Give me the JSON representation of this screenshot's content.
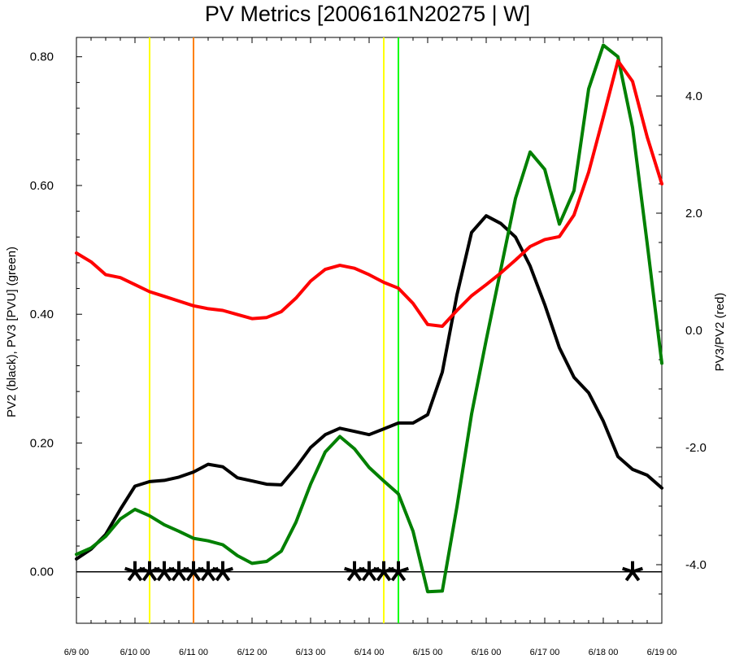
{
  "chart_data": {
    "type": "line",
    "title": "PV Metrics [2006161N20275 | W]",
    "left_ylabel": "PV2 (black), PV3 [PVU] (green)",
    "right_ylabel": "PV3/PV2 (red)",
    "x_tick_labels": [
      "6/9 00",
      "6/10 00",
      "6/11 00",
      "6/12 00",
      "6/13 00",
      "6/14 00",
      "6/15 00",
      "6/16 00",
      "6/17 00",
      "6/18 00",
      "6/19 00"
    ],
    "left_ylim": [
      -0.08,
      0.83
    ],
    "right_ylim": [
      -5.0,
      5.0
    ],
    "left_y_ticks": [
      "0.00",
      "0.20",
      "0.40",
      "0.60",
      "0.80"
    ],
    "right_y_ticks": [
      "-4.0",
      "-2.0",
      "0.0",
      "2.0",
      "4.0"
    ],
    "x_day_range": [
      0,
      10
    ],
    "series": [
      {
        "color": "#000000",
        "axis": "left",
        "x": [
          0,
          0.25,
          0.5,
          0.75,
          1.0,
          1.25,
          1.5,
          1.75,
          2.0,
          2.25,
          2.5,
          2.75,
          3.0,
          3.25,
          3.5,
          3.75,
          4.0,
          4.25,
          4.5,
          4.75,
          5.0,
          5.25,
          5.5,
          5.75,
          6.0,
          6.25,
          6.5,
          6.75,
          7.0,
          7.25,
          7.5,
          7.75,
          8.0,
          8.25,
          8.5,
          8.75,
          9.0,
          9.25,
          9.5,
          9.75,
          10.0
        ],
        "values": [
          0.02,
          0.035,
          0.058,
          0.097,
          0.133,
          0.14,
          0.142,
          0.147,
          0.155,
          0.167,
          0.163,
          0.146,
          0.141,
          0.136,
          0.135,
          0.162,
          0.193,
          0.213,
          0.223,
          0.218,
          0.213,
          0.222,
          0.231,
          0.231,
          0.244,
          0.31,
          0.43,
          0.527,
          0.553,
          0.541,
          0.52,
          0.475,
          0.415,
          0.348,
          0.302,
          0.278,
          0.234,
          0.179,
          0.159,
          0.15,
          0.13
        ]
      },
      {
        "color": "#008000",
        "axis": "left",
        "x": [
          0,
          0.25,
          0.5,
          0.75,
          1.0,
          1.25,
          1.5,
          1.75,
          2.0,
          2.25,
          2.5,
          2.75,
          3.0,
          3.25,
          3.5,
          3.75,
          4.0,
          4.25,
          4.5,
          4.75,
          5.0,
          5.25,
          5.5,
          5.75,
          6.0,
          6.25,
          6.5,
          6.75,
          7.0,
          7.25,
          7.5,
          7.75,
          8.0,
          8.25,
          8.5,
          8.75,
          9.0,
          9.25,
          9.5,
          9.75,
          10.0
        ],
        "values": [
          0.027,
          0.037,
          0.055,
          0.082,
          0.097,
          0.087,
          0.073,
          0.063,
          0.052,
          0.048,
          0.042,
          0.025,
          0.013,
          0.016,
          0.032,
          0.077,
          0.136,
          0.186,
          0.21,
          0.191,
          0.162,
          0.141,
          0.121,
          0.063,
          -0.031,
          -0.03,
          0.101,
          0.245,
          0.36,
          0.47,
          0.58,
          0.652,
          0.625,
          0.54,
          0.592,
          0.75,
          0.818,
          0.8,
          0.69,
          0.51,
          0.324
        ]
      },
      {
        "color": "#ff0000",
        "axis": "right",
        "x": [
          0,
          0.25,
          0.5,
          0.75,
          1.0,
          1.25,
          1.5,
          1.75,
          2.0,
          2.25,
          2.5,
          2.75,
          3.0,
          3.25,
          3.5,
          3.75,
          4.0,
          4.25,
          4.5,
          4.75,
          5.0,
          5.25,
          5.5,
          5.75,
          6.0,
          6.25,
          6.5,
          6.75,
          7.0,
          7.25,
          7.5,
          7.75,
          8.0,
          8.25,
          8.5,
          8.75,
          9.0,
          9.25,
          9.5,
          9.75,
          10.0
        ],
        "values": [
          1.32,
          1.17,
          0.95,
          0.9,
          0.78,
          0.66,
          0.58,
          0.5,
          0.42,
          0.37,
          0.34,
          0.27,
          0.2,
          0.22,
          0.32,
          0.55,
          0.84,
          1.04,
          1.11,
          1.06,
          0.95,
          0.82,
          0.72,
          0.46,
          0.1,
          0.07,
          0.34,
          0.59,
          0.78,
          0.98,
          1.2,
          1.43,
          1.55,
          1.6,
          1.97,
          2.7,
          3.64,
          4.6,
          4.25,
          3.3,
          2.5
        ]
      }
    ],
    "vertical_lines": [
      {
        "x": 1.25,
        "color": "#ffff00"
      },
      {
        "x": 2.0,
        "color": "#ff8000"
      },
      {
        "x": 5.25,
        "color": "#ffff00"
      },
      {
        "x": 5.5,
        "color": "#00ff00"
      }
    ],
    "asterisk_markers": {
      "y": 0.0,
      "x": [
        1.0,
        1.25,
        1.5,
        1.75,
        2.0,
        2.25,
        2.5,
        4.75,
        5.0,
        5.25,
        5.5,
        9.5
      ]
    },
    "zero_reference_line": 0.0
  }
}
